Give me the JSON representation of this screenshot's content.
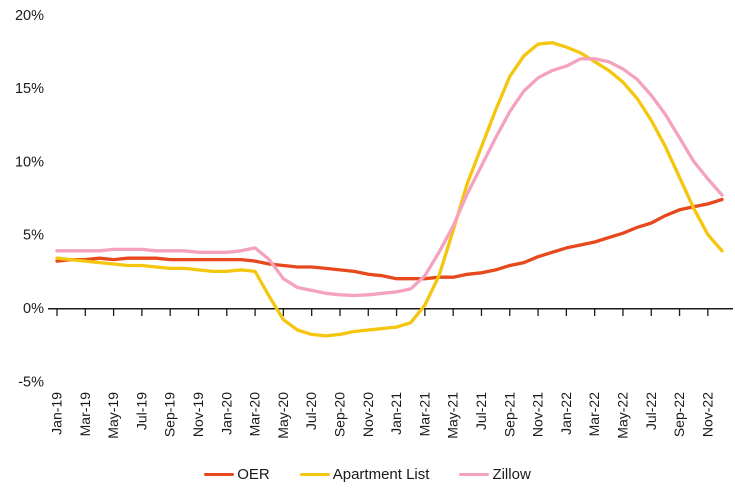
{
  "chart_data": {
    "type": "line",
    "title": "",
    "xlabel": "",
    "ylabel": "",
    "ylim": [
      -5,
      20
    ],
    "grid": false,
    "legend_position": "bottom",
    "y_tick_labels": [
      "20%",
      "15%",
      "10%",
      "5%",
      "0%",
      "-5%"
    ],
    "y_tick_values": [
      20,
      15,
      10,
      5,
      0,
      -5
    ],
    "x": [
      "Jan-19",
      "Feb-19",
      "Mar-19",
      "Apr-19",
      "May-19",
      "Jun-19",
      "Jul-19",
      "Aug-19",
      "Sep-19",
      "Oct-19",
      "Nov-19",
      "Dec-19",
      "Jan-20",
      "Feb-20",
      "Mar-20",
      "Apr-20",
      "May-20",
      "Jun-20",
      "Jul-20",
      "Aug-20",
      "Sep-20",
      "Oct-20",
      "Nov-20",
      "Dec-20",
      "Jan-21",
      "Feb-21",
      "Mar-21",
      "Apr-21",
      "May-21",
      "Jun-21",
      "Jul-21",
      "Aug-21",
      "Sep-21",
      "Oct-21",
      "Nov-21",
      "Dec-21",
      "Jan-22",
      "Feb-22",
      "Mar-22",
      "Apr-22",
      "May-22",
      "Jun-22",
      "Jul-22",
      "Aug-22",
      "Sep-22",
      "Oct-22",
      "Nov-22",
      "Dec-22"
    ],
    "x_tick_labels": [
      "Jan-19",
      "Mar-19",
      "May-19",
      "Jul-19",
      "Sep-19",
      "Nov-19",
      "Jan-20",
      "Mar-20",
      "May-20",
      "Jul-20",
      "Sep-20",
      "Nov-20",
      "Jan-21",
      "Mar-21",
      "May-21",
      "Jul-21",
      "Sep-21",
      "Nov-21",
      "Jan-22",
      "Mar-22",
      "May-22",
      "Jul-22",
      "Sep-22",
      "Nov-22"
    ],
    "series": [
      {
        "name": "OER",
        "color": "#E8481D",
        "values": [
          3.2,
          3.3,
          3.3,
          3.4,
          3.3,
          3.4,
          3.4,
          3.4,
          3.3,
          3.3,
          3.3,
          3.3,
          3.3,
          3.3,
          3.2,
          3.0,
          2.9,
          2.8,
          2.8,
          2.7,
          2.6,
          2.5,
          2.3,
          2.2,
          2.0,
          2.0,
          2.0,
          2.1,
          2.1,
          2.3,
          2.4,
          2.6,
          2.9,
          3.1,
          3.5,
          3.8,
          4.1,
          4.3,
          4.5,
          4.8,
          5.1,
          5.5,
          5.8,
          6.3,
          6.7,
          6.9,
          7.1,
          7.4
        ]
      },
      {
        "name": "Apartment List",
        "color": "#F5C60E",
        "values": [
          3.4,
          3.3,
          3.2,
          3.1,
          3.0,
          2.9,
          2.9,
          2.8,
          2.7,
          2.7,
          2.6,
          2.5,
          2.5,
          2.6,
          2.5,
          0.8,
          -0.8,
          -1.5,
          -1.8,
          -1.9,
          -1.8,
          -1.6,
          -1.5,
          -1.4,
          -1.3,
          -1.0,
          0.2,
          2.2,
          5.3,
          8.5,
          11.0,
          13.5,
          15.8,
          17.2,
          18.0,
          18.1,
          17.8,
          17.4,
          16.8,
          16.2,
          15.4,
          14.3,
          12.8,
          11.0,
          8.9,
          6.8,
          5.0,
          3.9
        ]
      },
      {
        "name": "Zillow",
        "color": "#F5A2C0",
        "values": [
          3.9,
          3.9,
          3.9,
          3.9,
          4.0,
          4.0,
          4.0,
          3.9,
          3.9,
          3.9,
          3.8,
          3.8,
          3.8,
          3.9,
          4.1,
          3.3,
          2.0,
          1.4,
          1.2,
          1.0,
          0.9,
          0.85,
          0.9,
          1.0,
          1.1,
          1.3,
          2.2,
          3.8,
          5.6,
          7.8,
          9.7,
          11.6,
          13.4,
          14.8,
          15.7,
          16.2,
          16.5,
          17.0,
          17.0,
          16.8,
          16.3,
          15.6,
          14.5,
          13.2,
          11.6,
          10.0,
          8.8,
          7.7
        ]
      }
    ]
  },
  "legend": {
    "items": [
      {
        "label": "OER"
      },
      {
        "label": "Apartment List"
      },
      {
        "label": "Zillow"
      }
    ]
  },
  "style": {
    "axis_color": "#1a1a1a",
    "text_color": "#1a1a1a"
  }
}
